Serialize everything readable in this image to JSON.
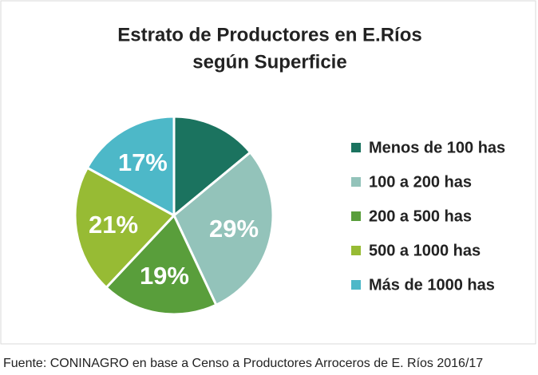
{
  "chart_data": {
    "type": "pie",
    "title": "Estrato de Productores en E.Ríos",
    "subtitle": "según Superficie",
    "categories": [
      "Menos de 100 has",
      "100 a 200 has",
      "200 a 500 has",
      "500 a 1000 has",
      "Más de 1000 has"
    ],
    "values": [
      14,
      29,
      19,
      21,
      17
    ],
    "value_labels": [
      null,
      "29%",
      "19%",
      "21%",
      "17%"
    ],
    "colors": [
      "#1b735f",
      "#93c3ba",
      "#599e3b",
      "#97bb34",
      "#4db8c8"
    ],
    "legend": "right",
    "source": "Fuente: CONINAGRO en base a Censo a Productores Arroceros de E. Ríos 2016/17"
  }
}
